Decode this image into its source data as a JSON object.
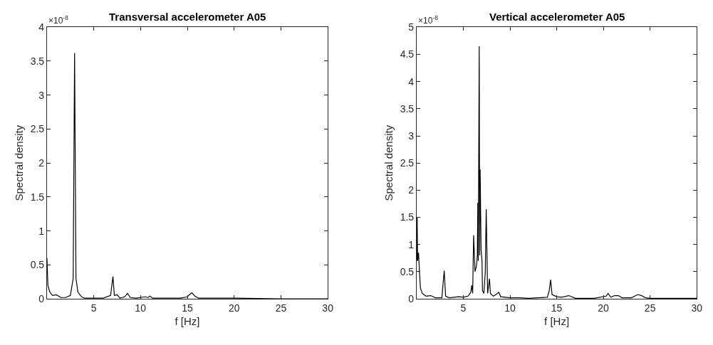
{
  "chart_data": [
    {
      "type": "line",
      "title": "Transversal accelerometer A05",
      "xlabel": "f [Hz]",
      "ylabel": "Spectral density",
      "annotations": [
        "×10$^{-8}$"
      ],
      "color": "#000000",
      "x": [
        0,
        0.1,
        0.3,
        0.6,
        1,
        1.5,
        2,
        2.5,
        2.8,
        2.95,
        3.1,
        3.3,
        3.7,
        4,
        5,
        6,
        6.8,
        7.05,
        7.2,
        7.5,
        7.8,
        8.3,
        8.6,
        8.9,
        9.5,
        10.5,
        10.8,
        11,
        11.3,
        13,
        14.3,
        15,
        15.2,
        15.5,
        15.8,
        16.2,
        17,
        20,
        25,
        30
      ],
      "values": [
        0.6,
        0.2,
        0.1,
        0.05,
        0.06,
        0.02,
        0.02,
        0.05,
        0.3,
        3.62,
        0.3,
        0.1,
        0.03,
        0.01,
        0.01,
        0.01,
        0.05,
        0.33,
        0.05,
        0.06,
        0.01,
        0.03,
        0.08,
        0.02,
        0.01,
        0.03,
        0.02,
        0.04,
        0.01,
        0.01,
        0.01,
        0.03,
        0.06,
        0.09,
        0.04,
        0.01,
        0.01,
        0.01,
        0,
        0
      ],
      "xlim": [
        0,
        30
      ],
      "xticks": [
        5,
        10,
        15,
        20,
        25,
        30
      ],
      "ylim": [
        0,
        4
      ],
      "yticks": [
        0,
        0.5,
        1,
        1.5,
        2,
        2.5,
        3,
        3.5,
        4
      ]
    },
    {
      "type": "line",
      "title": "Vertical accelerometer A05",
      "xlabel": "f [Hz]",
      "ylabel": "Spectral density",
      "annotations": [
        "×10$^{-8}$"
      ],
      "color": "#000000",
      "x": [
        0,
        0.05,
        0.1,
        0.2,
        0.3,
        0.4,
        0.6,
        1,
        1.5,
        2,
        2.7,
        2.95,
        3.1,
        3.5,
        4.5,
        5,
        5.5,
        5.8,
        5.9,
        6.0,
        6.1,
        6.25,
        6.4,
        6.5,
        6.55,
        6.6,
        6.7,
        6.75,
        6.8,
        6.9,
        7.0,
        7.05,
        7.2,
        7.35,
        7.45,
        7.6,
        7.8,
        7.9,
        8.2,
        8.5,
        8.8,
        9,
        10,
        11,
        12,
        13,
        14,
        14.2,
        14.35,
        14.5,
        15,
        15.5,
        16.3,
        17,
        19,
        20.3,
        20.5,
        20.8,
        21.2,
        21.6,
        22,
        23,
        23.7,
        24.1,
        24.5,
        25,
        27,
        30
      ],
      "values": [
        0.7,
        1.5,
        0.7,
        0.85,
        0.5,
        0.2,
        0.1,
        0.05,
        0.06,
        0.02,
        0.02,
        0.52,
        0.05,
        0.02,
        0.04,
        0.03,
        0.05,
        0.12,
        0.25,
        0.1,
        1.17,
        0.5,
        0.6,
        0.8,
        1.77,
        0.7,
        4.65,
        0.8,
        2.38,
        0.9,
        0.7,
        0.15,
        0.1,
        0.5,
        1.65,
        0.1,
        0.37,
        0.1,
        0.05,
        0.08,
        0.12,
        0.04,
        0.02,
        0.02,
        0.01,
        0.02,
        0.03,
        0.15,
        0.35,
        0.08,
        0.04,
        0.03,
        0.06,
        0.01,
        0.01,
        0.05,
        0.1,
        0.03,
        0.06,
        0.06,
        0.02,
        0.02,
        0.08,
        0.06,
        0.02,
        0.01,
        0.01,
        0.01
      ],
      "xlim": [
        0,
        30
      ],
      "xticks": [
        5,
        10,
        15,
        20,
        25,
        30
      ],
      "ylim": [
        0,
        5
      ],
      "yticks": [
        0,
        0.5,
        1,
        1.5,
        2,
        2.5,
        3,
        3.5,
        4,
        4.5,
        5
      ]
    }
  ]
}
